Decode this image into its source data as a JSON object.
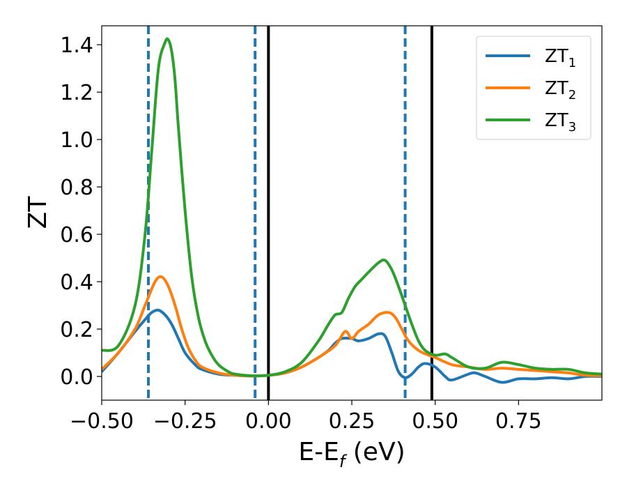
{
  "chart_data": {
    "type": "line",
    "xlabel": "E-E",
    "xlabel_sub": "f",
    "xlabel_unit": " (eV)",
    "ylabel": "ZT",
    "xlim": [
      -0.5,
      1.0
    ],
    "ylim": [
      -0.1,
      1.48
    ],
    "xticks": [
      -0.5,
      -0.25,
      0.0,
      0.25,
      0.5,
      0.75
    ],
    "xtick_labels": [
      "−0.50",
      "−0.25",
      "0.00",
      "0.25",
      "0.50",
      "0.75"
    ],
    "yticks": [
      0.0,
      0.2,
      0.4,
      0.6,
      0.8,
      1.0,
      1.2,
      1.4
    ],
    "ytick_labels": [
      "0.0",
      "0.2",
      "0.4",
      "0.6",
      "0.8",
      "1.0",
      "1.2",
      "1.4"
    ],
    "grid": false,
    "legend_position": "top-right",
    "vlines_dashed": [
      -0.36,
      -0.04,
      0.41
    ],
    "vlines_solid": [
      0.0,
      0.49
    ],
    "series": [
      {
        "name": "ZT",
        "sub": "1",
        "color": "#1f77b4",
        "x": [
          -0.5,
          -0.45,
          -0.4,
          -0.37,
          -0.35,
          -0.33,
          -0.31,
          -0.29,
          -0.27,
          -0.25,
          -0.22,
          -0.2,
          -0.15,
          -0.1,
          -0.05,
          0.0,
          0.05,
          0.1,
          0.15,
          0.18,
          0.2,
          0.22,
          0.25,
          0.27,
          0.3,
          0.33,
          0.35,
          0.37,
          0.39,
          0.41,
          0.43,
          0.45,
          0.47,
          0.5,
          0.53,
          0.55,
          0.6,
          0.62,
          0.65,
          0.7,
          0.75,
          0.8,
          0.85,
          0.9,
          0.95,
          1.0
        ],
        "y": [
          0.02,
          0.1,
          0.19,
          0.24,
          0.27,
          0.28,
          0.26,
          0.22,
          0.16,
          0.1,
          0.05,
          0.03,
          0.01,
          0.005,
          0.002,
          0.005,
          0.015,
          0.04,
          0.08,
          0.11,
          0.14,
          0.16,
          0.16,
          0.15,
          0.16,
          0.18,
          0.17,
          0.1,
          0.02,
          -0.005,
          0.01,
          0.04,
          0.055,
          0.04,
          0.0,
          -0.015,
          0.01,
          0.015,
          0.0,
          -0.025,
          -0.01,
          -0.01,
          -0.005,
          -0.01,
          0.0,
          0.0
        ]
      },
      {
        "name": "ZT",
        "sub": "2",
        "color": "#ff7f0e",
        "x": [
          -0.5,
          -0.45,
          -0.4,
          -0.37,
          -0.34,
          -0.32,
          -0.3,
          -0.28,
          -0.26,
          -0.24,
          -0.22,
          -0.2,
          -0.15,
          -0.1,
          -0.05,
          0.0,
          0.05,
          0.1,
          0.15,
          0.2,
          0.23,
          0.25,
          0.27,
          0.3,
          0.33,
          0.36,
          0.38,
          0.4,
          0.42,
          0.45,
          0.48,
          0.5,
          0.55,
          0.6,
          0.65,
          0.7,
          0.75,
          0.8,
          0.85,
          0.9,
          0.95,
          1.0
        ],
        "y": [
          0.03,
          0.1,
          0.2,
          0.3,
          0.4,
          0.42,
          0.38,
          0.3,
          0.2,
          0.12,
          0.07,
          0.04,
          0.015,
          0.005,
          0.002,
          0.005,
          0.015,
          0.04,
          0.08,
          0.13,
          0.19,
          0.16,
          0.19,
          0.22,
          0.26,
          0.27,
          0.25,
          0.2,
          0.15,
          0.11,
          0.09,
          0.08,
          0.05,
          0.04,
          0.03,
          0.035,
          0.03,
          0.025,
          0.02,
          0.015,
          0.005,
          0.003
        ]
      },
      {
        "name": "ZT",
        "sub": "3",
        "color": "#2ca02c",
        "x": [
          -0.5,
          -0.45,
          -0.4,
          -0.37,
          -0.35,
          -0.33,
          -0.31,
          -0.3,
          -0.29,
          -0.28,
          -0.27,
          -0.25,
          -0.23,
          -0.21,
          -0.19,
          -0.17,
          -0.15,
          -0.12,
          -0.1,
          -0.05,
          0.0,
          0.05,
          0.1,
          0.15,
          0.18,
          0.2,
          0.22,
          0.24,
          0.26,
          0.28,
          0.3,
          0.33,
          0.35,
          0.37,
          0.39,
          0.41,
          0.43,
          0.45,
          0.47,
          0.5,
          0.53,
          0.55,
          0.6,
          0.65,
          0.7,
          0.75,
          0.8,
          0.85,
          0.9,
          0.95,
          1.0
        ],
        "y": [
          0.11,
          0.13,
          0.3,
          0.6,
          0.95,
          1.3,
          1.41,
          1.42,
          1.37,
          1.25,
          1.05,
          0.7,
          0.42,
          0.25,
          0.15,
          0.09,
          0.05,
          0.02,
          0.01,
          0.003,
          0.005,
          0.02,
          0.06,
          0.15,
          0.22,
          0.26,
          0.27,
          0.33,
          0.38,
          0.41,
          0.44,
          0.48,
          0.49,
          0.45,
          0.38,
          0.3,
          0.22,
          0.15,
          0.11,
          0.09,
          0.095,
          0.08,
          0.04,
          0.035,
          0.06,
          0.05,
          0.035,
          0.03,
          0.03,
          0.015,
          0.01
        ]
      }
    ]
  }
}
